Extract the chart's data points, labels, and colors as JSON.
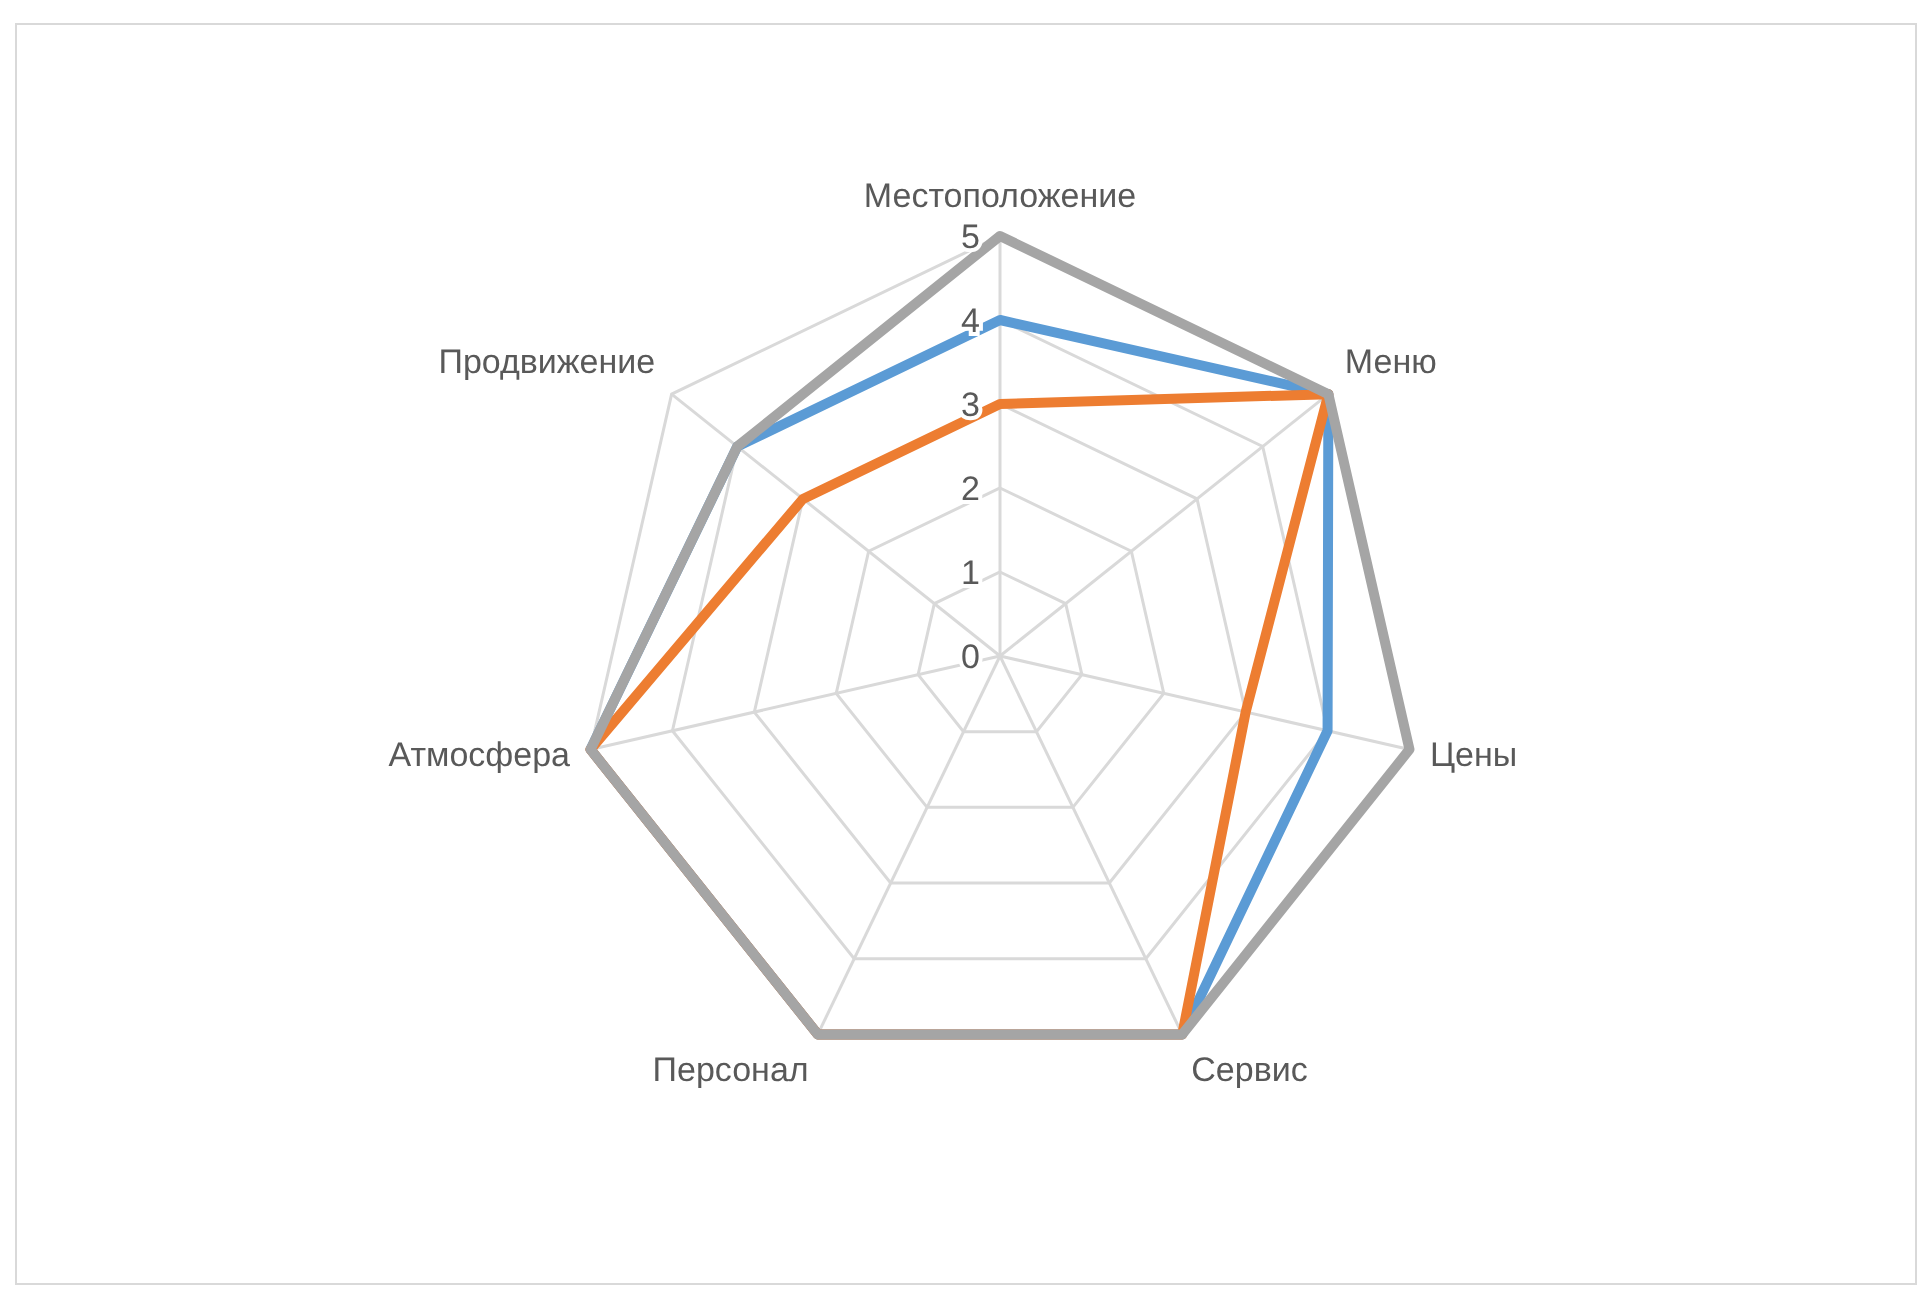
{
  "chart_data": {
    "type": "radar",
    "categories": [
      "Местоположение",
      "Меню",
      "Цены",
      "Сервис",
      "Персонал",
      "Атмосфера",
      "Продвижение"
    ],
    "series": [
      {
        "color": "#5b9bd5",
        "values": [
          4,
          5,
          4,
          5,
          5,
          5,
          4
        ]
      },
      {
        "color": "#ed7d31",
        "values": [
          3,
          5,
          3,
          5,
          5,
          5,
          3
        ]
      },
      {
        "color": "#a5a5a5",
        "values": [
          5,
          5,
          5,
          5,
          5,
          5,
          4
        ]
      }
    ],
    "ylim": [
      0,
      5
    ],
    "yticks": [
      0,
      1,
      2,
      3,
      4,
      5
    ],
    "grid": true,
    "legend": false
  }
}
